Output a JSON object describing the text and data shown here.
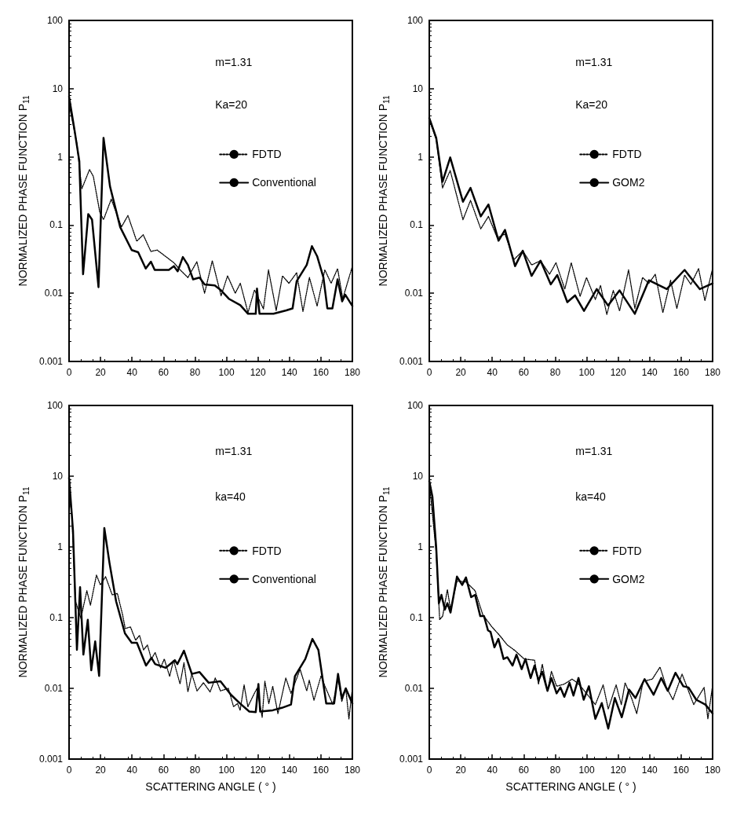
{
  "chart_data": [
    {
      "type": "line",
      "xlabel": null,
      "ylabel": "NORMALIZED PHASE FUNCTION P$_{11}$",
      "annotations": [
        "m=1.31",
        "Ka=20"
      ],
      "xlim": [
        0,
        180
      ],
      "xticks": [
        0,
        20,
        40,
        60,
        80,
        100,
        120,
        140,
        160,
        180
      ],
      "ylim": [
        0.001,
        100
      ],
      "yticks": [
        0.001,
        0.01,
        0.1,
        1,
        10,
        100
      ],
      "log": "y",
      "grid": false,
      "legend": "right",
      "marker": "none",
      "series": [
        {
          "name": "FDTD",
          "color": "#000000",
          "line_style": "dotted",
          "x": [
            0,
            4.9,
            8.1,
            13,
            15.4,
            19.5,
            21.9,
            26.8,
            33.3,
            37.4,
            43,
            47.1,
            52,
            56,
            66.6,
            70.6,
            75.5,
            81.2,
            86.1,
            91,
            96.6,
            100.7,
            105.6,
            108.8,
            113.7,
            117.8,
            123.5,
            126.7,
            131.6,
            135.6,
            139.7,
            144.6,
            148.6,
            152.7,
            157.6,
            162.5,
            166.5,
            170.6,
            173.9,
            180
          ],
          "values": [
            5.9,
            1.6,
            0.34,
            0.65,
            0.52,
            0.155,
            0.12,
            0.24,
            0.094,
            0.138,
            0.058,
            0.072,
            0.041,
            0.043,
            0.028,
            0.022,
            0.017,
            0.029,
            0.01,
            0.03,
            0.0092,
            0.018,
            0.01,
            0.014,
            0.0052,
            0.0112,
            0.0059,
            0.022,
            0.0056,
            0.018,
            0.014,
            0.02,
            0.0054,
            0.017,
            0.0065,
            0.022,
            0.014,
            0.023,
            0.0083,
            0.025
          ]
        },
        {
          "name": "Conventional",
          "color": "#000000",
          "line_style": "solid",
          "x": [
            0,
            3.2,
            6.5,
            8.9,
            12.2,
            14.6,
            18.7,
            21.9,
            26,
            32.5,
            39.8,
            43.9,
            48.7,
            52,
            54.4,
            63.4,
            66.6,
            69,
            72.3,
            75.5,
            78.8,
            82.9,
            86.1,
            92.6,
            96.6,
            101.5,
            108.8,
            113.7,
            118.6,
            119.4,
            121,
            129.9,
            138,
            142,
            144.6,
            151,
            154.3,
            157.6,
            161.6,
            164.1,
            167.3,
            170.6,
            173.5,
            175.5,
            180
          ],
          "values": [
            7.6,
            2.7,
            0.87,
            0.019,
            0.145,
            0.12,
            0.0123,
            1.9,
            0.37,
            0.093,
            0.043,
            0.04,
            0.023,
            0.029,
            0.022,
            0.022,
            0.025,
            0.021,
            0.034,
            0.026,
            0.016,
            0.017,
            0.0135,
            0.013,
            0.011,
            0.0083,
            0.0067,
            0.005,
            0.005,
            0.0117,
            0.005,
            0.005,
            0.0056,
            0.006,
            0.015,
            0.026,
            0.049,
            0.035,
            0.017,
            0.006,
            0.006,
            0.016,
            0.0076,
            0.0095,
            0.0065
          ]
        }
      ]
    },
    {
      "type": "line",
      "xlabel": null,
      "ylabel": "NORMALIZED PHASE FUNCTION P$_{11}$",
      "annotations": [
        "m=1.31",
        "Ka=20"
      ],
      "xlim": [
        0,
        180
      ],
      "xticks": [
        0,
        20,
        40,
        60,
        80,
        100,
        120,
        140,
        160,
        180
      ],
      "ylim": [
        0.001,
        100
      ],
      "yticks": [
        0.001,
        0.01,
        0.1,
        1,
        10,
        100
      ],
      "log": "y",
      "grid": false,
      "legend": "right",
      "marker": "none",
      "series": [
        {
          "name": "FDTD",
          "color": "#000000",
          "line_style": "dotted",
          "x": [
            0,
            4.4,
            8.4,
            13.3,
            21.4,
            26.2,
            32.7,
            37.6,
            43.2,
            48.1,
            53.7,
            59.4,
            65,
            70.7,
            76.4,
            80.5,
            86.1,
            90.2,
            95.8,
            99.9,
            105.5,
            108.8,
            112.8,
            116.9,
            120.9,
            126.6,
            130.6,
            135.5,
            139.5,
            143.6,
            148.4,
            153.3,
            157.3,
            162.2,
            166.2,
            171.1,
            175.1,
            180
          ],
          "values": [
            3.5,
            1.8,
            0.35,
            0.63,
            0.12,
            0.23,
            0.088,
            0.134,
            0.065,
            0.074,
            0.031,
            0.042,
            0.026,
            0.03,
            0.019,
            0.028,
            0.0115,
            0.028,
            0.009,
            0.017,
            0.0081,
            0.013,
            0.0049,
            0.011,
            0.0055,
            0.022,
            0.006,
            0.017,
            0.014,
            0.019,
            0.0052,
            0.0155,
            0.006,
            0.0185,
            0.0135,
            0.023,
            0.0078,
            0.023
          ]
        },
        {
          "name": "GOM2",
          "color": "#000000",
          "line_style": "solid",
          "x": [
            0,
            4.4,
            8.4,
            13.3,
            21.4,
            26.2,
            32.7,
            37.6,
            44,
            48.1,
            54.5,
            59.4,
            65,
            70.7,
            77.2,
            81.3,
            87.7,
            92.6,
            98.3,
            106.4,
            113.6,
            120.9,
            130.6,
            139.5,
            150.9,
            162.2,
            171.9,
            180
          ],
          "values": [
            3.7,
            1.9,
            0.43,
            0.98,
            0.22,
            0.35,
            0.134,
            0.2,
            0.059,
            0.085,
            0.025,
            0.042,
            0.018,
            0.03,
            0.0135,
            0.0185,
            0.0074,
            0.0093,
            0.0055,
            0.0115,
            0.0066,
            0.011,
            0.005,
            0.0155,
            0.0115,
            0.022,
            0.0115,
            0.014
          ]
        }
      ]
    },
    {
      "type": "line",
      "xlabel": "SCATTERING ANGLE ( ° )",
      "ylabel": "NORMALIZED PHASE FUNCTION P$_{11}$",
      "annotations": [
        "m=1.31",
        "ka=40"
      ],
      "xlim": [
        0,
        180
      ],
      "xticks": [
        0,
        20,
        40,
        60,
        80,
        100,
        120,
        140,
        160,
        180
      ],
      "ylim": [
        0.001,
        100
      ],
      "yticks": [
        0.001,
        0.01,
        0.1,
        1,
        10,
        100
      ],
      "log": "y",
      "grid": false,
      "legend": "right",
      "marker": "none",
      "series": [
        {
          "name": "FDTD",
          "color": "#000000",
          "line_style": "dotted",
          "x": [
            0,
            1.7,
            4.1,
            7.5,
            11.3,
            13.6,
            17.4,
            19.9,
            23.2,
            27.4,
            30.7,
            34,
            35.7,
            39,
            42.3,
            44.8,
            47.3,
            49.8,
            52.3,
            54.7,
            58.1,
            60.5,
            63.9,
            66.4,
            70.5,
            73,
            75.5,
            78,
            81.3,
            85.4,
            89.6,
            92.9,
            96.2,
            101.2,
            104.5,
            107,
            108.7,
            111.2,
            113.6,
            116.9,
            119.4,
            122.7,
            124.4,
            126.9,
            129.4,
            132.7,
            137.7,
            141,
            146.8,
            151,
            152.6,
            155.6,
            160.1,
            162.6,
            167.6,
            170.9,
            173.3,
            175.8,
            177.8,
            180
          ],
          "values": [
            4.9,
            3.1,
            0.17,
            0.098,
            0.24,
            0.15,
            0.4,
            0.29,
            0.38,
            0.21,
            0.22,
            0.11,
            0.07,
            0.074,
            0.048,
            0.056,
            0.035,
            0.041,
            0.026,
            0.032,
            0.0195,
            0.026,
            0.0148,
            0.025,
            0.0115,
            0.023,
            0.0089,
            0.016,
            0.0092,
            0.012,
            0.0089,
            0.014,
            0.0092,
            0.01,
            0.0055,
            0.0061,
            0.0049,
            0.0112,
            0.0055,
            0.0078,
            0.01,
            0.0039,
            0.0126,
            0.0061,
            0.0107,
            0.0044,
            0.014,
            0.0085,
            0.0186,
            0.0092,
            0.013,
            0.0068,
            0.015,
            0.0107,
            0.0059,
            0.0135,
            0.0065,
            0.01,
            0.0037,
            0.01
          ]
        },
        {
          "name": "Conventional",
          "color": "#000000",
          "line_style": "solid",
          "x": [
            0,
            2.5,
            5,
            7,
            9.1,
            11.9,
            14.1,
            16.6,
            19.1,
            22.4,
            25.7,
            29.9,
            35.5,
            39.8,
            43.1,
            48.9,
            52.3,
            54.7,
            61.4,
            67.2,
            68.8,
            73,
            78,
            82.9,
            88.7,
            96.2,
            102.9,
            108.7,
            114.5,
            118.6,
            120.3,
            121.4,
            129.4,
            135.2,
            141,
            143.5,
            150.1,
            154.6,
            158.4,
            163.4,
            168.4,
            170.9,
            173.3,
            175.8,
            180
          ],
          "values": [
            9.5,
            1.7,
            0.035,
            0.27,
            0.03,
            0.093,
            0.018,
            0.046,
            0.015,
            1.85,
            0.59,
            0.17,
            0.06,
            0.044,
            0.044,
            0.021,
            0.027,
            0.022,
            0.0195,
            0.025,
            0.022,
            0.034,
            0.016,
            0.017,
            0.012,
            0.0126,
            0.0081,
            0.0061,
            0.0047,
            0.0046,
            0.0115,
            0.0047,
            0.0049,
            0.0053,
            0.0059,
            0.0148,
            0.026,
            0.05,
            0.035,
            0.0061,
            0.0061,
            0.016,
            0.0072,
            0.01,
            0.0061
          ]
        }
      ]
    },
    {
      "type": "line",
      "xlabel": "SCATTERING ANGLE ( ° )",
      "ylabel": "NORMALIZED PHASE FUNCTION P$_{11}$",
      "annotations": [
        "m=1.31",
        "ka=40"
      ],
      "xlim": [
        0,
        180
      ],
      "xticks": [
        0,
        20,
        40,
        60,
        80,
        100,
        120,
        140,
        160,
        180
      ],
      "ylim": [
        0.001,
        100
      ],
      "yticks": [
        0.001,
        0.01,
        0.1,
        1,
        10,
        100
      ],
      "log": "y",
      "grid": false,
      "legend": "right",
      "marker": "none",
      "series": [
        {
          "name": "FDTD",
          "color": "#000000",
          "line_style": "dotted",
          "x": [
            0,
            4.4,
            6.6,
            8.5,
            11.5,
            13.5,
            17.6,
            23.3,
            29.1,
            34,
            39.8,
            44.7,
            49.6,
            54.6,
            60.3,
            66.9,
            69.4,
            71.8,
            75.1,
            77.6,
            80.9,
            85.8,
            90.7,
            94,
            97.3,
            105.5,
            110.5,
            113.7,
            118.7,
            122,
            124.4,
            128.5,
            131.8,
            135.9,
            141.7,
            146.6,
            150.7,
            154.8,
            160.6,
            168,
            174.6,
            177,
            180
          ],
          "values": [
            8.2,
            0.83,
            0.094,
            0.105,
            0.25,
            0.13,
            0.33,
            0.32,
            0.24,
            0.11,
            0.074,
            0.056,
            0.041,
            0.034,
            0.026,
            0.025,
            0.0115,
            0.022,
            0.0092,
            0.0174,
            0.0107,
            0.0115,
            0.0135,
            0.012,
            0.01,
            0.0059,
            0.0112,
            0.0051,
            0.0112,
            0.0059,
            0.012,
            0.0073,
            0.0044,
            0.0126,
            0.0135,
            0.02,
            0.0103,
            0.0069,
            0.0159,
            0.0059,
            0.0103,
            0.0037,
            0.011
          ]
        },
        {
          "name": "GOM2",
          "color": "#000000",
          "line_style": "solid",
          "x": [
            0,
            2,
            4.4,
            6.1,
            7.7,
            9.9,
            11.5,
            13.5,
            17.6,
            20.9,
            23.3,
            26.6,
            29.1,
            32.4,
            34.8,
            37.3,
            38.9,
            41.4,
            43.9,
            47.2,
            49.6,
            52.9,
            55.4,
            58.7,
            61.1,
            64.4,
            66.9,
            69.4,
            71.8,
            75.1,
            77.6,
            80.9,
            83.3,
            85.8,
            89.1,
            91.6,
            94.8,
            98.1,
            101.4,
            105.5,
            109.6,
            113.7,
            117.9,
            122.3,
            126.9,
            131,
            136.8,
            142.5,
            147.4,
            151.5,
            156.4,
            161.4,
            164.7,
            169.6,
            175.4,
            180
          ],
          "values": [
            8.5,
            5.1,
            0.98,
            0.16,
            0.21,
            0.13,
            0.16,
            0.118,
            0.38,
            0.29,
            0.37,
            0.195,
            0.21,
            0.105,
            0.105,
            0.066,
            0.063,
            0.038,
            0.05,
            0.026,
            0.0275,
            0.021,
            0.03,
            0.0187,
            0.026,
            0.014,
            0.021,
            0.0129,
            0.0172,
            0.0092,
            0.014,
            0.0085,
            0.0103,
            0.0076,
            0.012,
            0.0079,
            0.014,
            0.0069,
            0.0107,
            0.0037,
            0.0062,
            0.0027,
            0.0073,
            0.0039,
            0.0096,
            0.0073,
            0.0135,
            0.0081,
            0.014,
            0.0092,
            0.0166,
            0.0107,
            0.0103,
            0.0069,
            0.0059,
            0.0044
          ]
        }
      ]
    }
  ]
}
